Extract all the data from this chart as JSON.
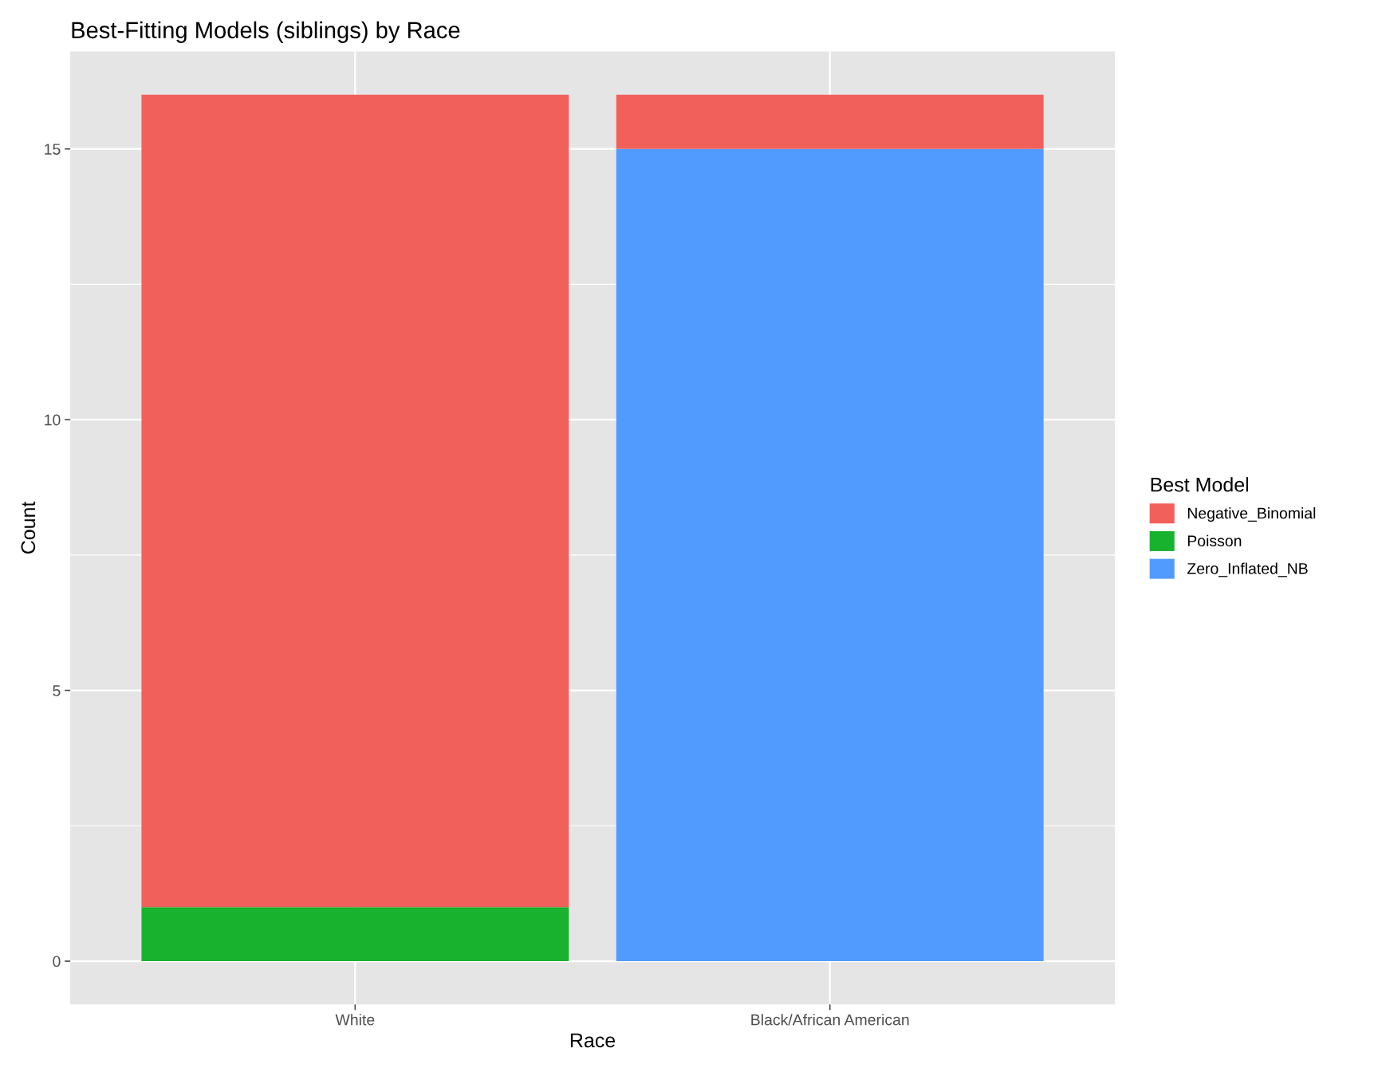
{
  "chart_data": {
    "type": "bar",
    "title": "Best-Fitting Models (siblings) by Race",
    "xlabel": "Race",
    "ylabel": "Count",
    "legend_title": "Best Model",
    "categories": [
      "White",
      "Black/African American"
    ],
    "series": [
      {
        "name": "Zero_Inflated_NB",
        "color": "#519bff",
        "values": [
          0,
          15
        ]
      },
      {
        "name": "Poisson",
        "color": "#18b22f",
        "values": [
          1,
          0
        ]
      },
      {
        "name": "Negative_Binomial",
        "color": "#f2605c",
        "values": [
          15,
          1
        ]
      }
    ],
    "stacked": true,
    "ylim": [
      -0.8,
      16.8
    ],
    "yticks": [
      0,
      5,
      10,
      15
    ],
    "grid": true,
    "legend": "right"
  }
}
